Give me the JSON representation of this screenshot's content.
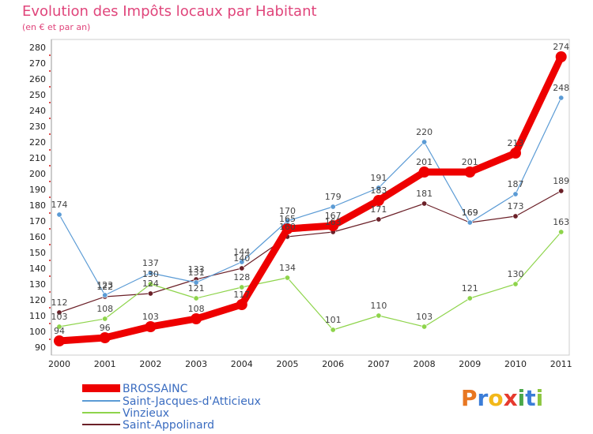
{
  "chart_data": {
    "type": "line",
    "title": "Evolution des Impôts locaux par Habitant",
    "subtitle": "(en € et par an)",
    "xlabel": "",
    "ylabel": "",
    "ylim": [
      90,
      280
    ],
    "ytick_step": 10,
    "grid": false,
    "legend": "bottom-left",
    "categories": [
      "2000",
      "2001",
      "2002",
      "2003",
      "2004",
      "2005",
      "2006",
      "2007",
      "2008",
      "2009",
      "2010",
      "2011"
    ],
    "series": [
      {
        "name": "BROSSAINC",
        "color": "#ee0000",
        "values": [
          94,
          96,
          103,
          108,
          117,
          165,
          167,
          183,
          201,
          201,
          213,
          274
        ],
        "labels": [
          "94",
          "96",
          "103",
          "108",
          "117",
          "165",
          "167",
          "183",
          "201",
          "201",
          "213",
          "274"
        ]
      },
      {
        "name": "Saint-Jacques-d'Atticieux",
        "color": "#5b9bd5",
        "values": [
          174,
          123,
          137,
          131,
          144,
          170,
          179,
          191,
          220,
          169,
          187,
          248
        ],
        "labels": [
          "174",
          "123",
          "137",
          "131",
          "144",
          "170",
          "179",
          "191",
          "220",
          "169",
          "187",
          "248"
        ]
      },
      {
        "name": "Vinzieux",
        "color": "#8ed44b",
        "values": [
          103,
          108,
          130,
          121,
          128,
          134,
          101,
          110,
          103,
          121,
          130,
          163
        ],
        "labels": [
          "103",
          "108",
          "130",
          "121",
          "128",
          "134",
          "101",
          "110",
          "103",
          "121",
          "130",
          "163"
        ]
      },
      {
        "name": "Saint-Appolinard",
        "color": "#6b2028",
        "values": [
          112,
          122,
          124,
          133,
          140,
          160,
          163,
          171,
          181,
          169,
          173,
          189
        ],
        "labels": [
          "112",
          "122",
          "124",
          "133",
          "140",
          "160",
          "163",
          "171",
          "181",
          "169",
          "173",
          "189"
        ]
      }
    ]
  },
  "logo": {
    "letters": [
      "P",
      "r",
      "o",
      "x",
      "i",
      "t",
      "i"
    ],
    "colors": [
      "#e87722",
      "#3b7dd8",
      "#f2b81a",
      "#e63a2e",
      "#4aa84a",
      "#3b7dd8",
      "#8cc63f"
    ]
  }
}
